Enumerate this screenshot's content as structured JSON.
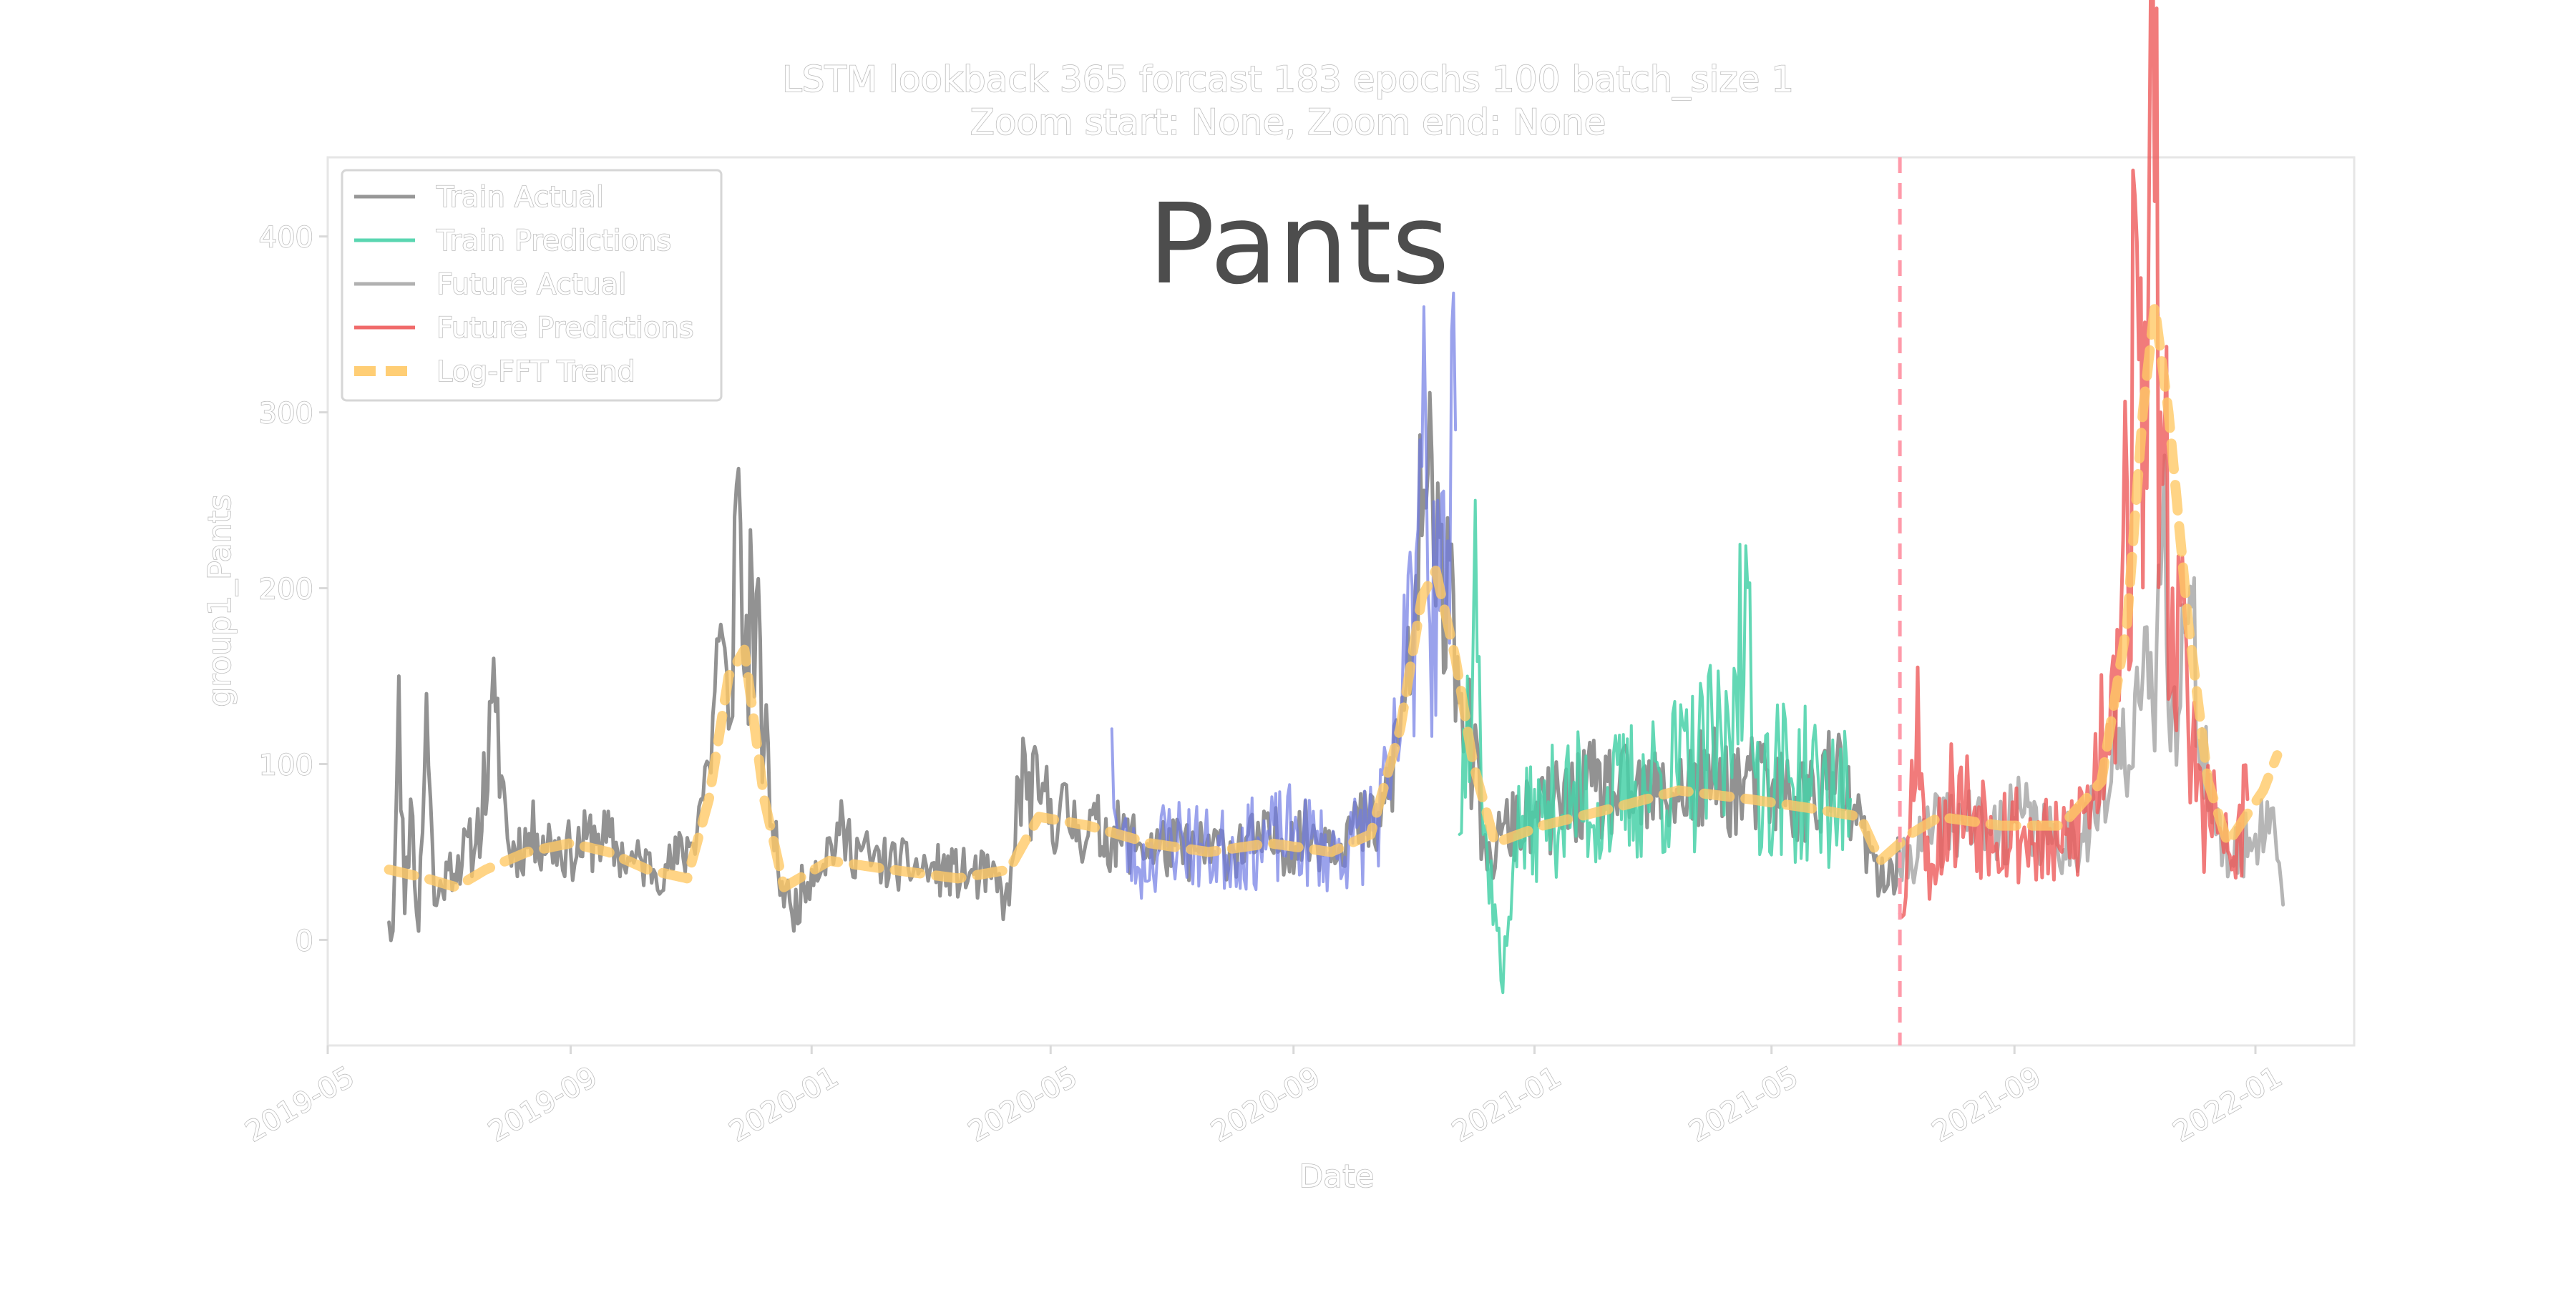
{
  "chart_data": {
    "type": "line",
    "title": "LSTM lookback 365 forcast 183 epochs 100 batch_size 1",
    "subtitle": "Zoom start: None, Zoom end: None",
    "watermark": "Pants",
    "xlabel": "Date",
    "ylabel": "group1_Pants",
    "x_range": [
      "2019-05-01",
      "2022-02-20"
    ],
    "ylim": [
      -60,
      445
    ],
    "x_ticks": [
      "2019-05",
      "2019-09",
      "2020-01",
      "2020-05",
      "2020-09",
      "2021-01",
      "2021-05",
      "2021-09",
      "2022-01"
    ],
    "y_ticks": [
      0,
      100,
      200,
      300,
      400
    ],
    "grid": false,
    "legend_position": "top-left",
    "split_line": {
      "x": "2021-07-05",
      "color": "#ff9aaa",
      "style": "dashed"
    },
    "legend": [
      {
        "label": "Train Actual",
        "color": "#8c8c8c",
        "style": "solid"
      },
      {
        "label": "Train Predictions",
        "color": "#48d1a8",
        "style": "solid"
      },
      {
        "label": "Future Actual",
        "color": "#a9a9a9",
        "style": "solid"
      },
      {
        "label": "Future Predictions",
        "color": "#ee5a5a",
        "style": "solid"
      },
      {
        "label": "Log-FFT Trend",
        "color": "#ffc966",
        "style": "dashed"
      }
    ],
    "series": [
      {
        "key": "train_actual",
        "color": "#8c8c8c",
        "opacity": 0.95,
        "width": 5,
        "noise": 1.0,
        "seed": 11,
        "anchors": [
          [
            "2019-06-01",
            10
          ],
          [
            "2019-06-03",
            5
          ],
          [
            "2019-06-06",
            150
          ],
          [
            "2019-06-09",
            15
          ],
          [
            "2019-06-12",
            80
          ],
          [
            "2019-06-16",
            5
          ],
          [
            "2019-06-20",
            140
          ],
          [
            "2019-06-24",
            20
          ],
          [
            "2019-07-01",
            40
          ],
          [
            "2019-07-15",
            55
          ],
          [
            "2019-07-25",
            130
          ],
          [
            "2019-08-01",
            50
          ],
          [
            "2019-08-15",
            60
          ],
          [
            "2019-09-01",
            50
          ],
          [
            "2019-09-15",
            60
          ],
          [
            "2019-10-01",
            45
          ],
          [
            "2019-10-20",
            40
          ],
          [
            "2019-11-01",
            55
          ],
          [
            "2019-11-10",
            100
          ],
          [
            "2019-11-15",
            170
          ],
          [
            "2019-11-20",
            120
          ],
          [
            "2019-11-25",
            268
          ],
          [
            "2019-11-28",
            150
          ],
          [
            "2019-12-02",
            200
          ],
          [
            "2019-12-08",
            110
          ],
          [
            "2019-12-15",
            40
          ],
          [
            "2019-12-22",
            15
          ],
          [
            "2020-01-01",
            40
          ],
          [
            "2020-01-15",
            60
          ],
          [
            "2020-02-01",
            45
          ],
          [
            "2020-03-01",
            40
          ],
          [
            "2020-04-01",
            35
          ],
          [
            "2020-04-10",
            20
          ],
          [
            "2020-04-15",
            90
          ],
          [
            "2020-04-25",
            80
          ],
          [
            "2020-05-15",
            65
          ],
          [
            "2020-06-15",
            55
          ],
          [
            "2020-07-15",
            50
          ],
          [
            "2020-08-15",
            55
          ],
          [
            "2020-09-15",
            60
          ],
          [
            "2020-10-15",
            65
          ],
          [
            "2020-10-25",
            120
          ],
          [
            "2020-11-01",
            180
          ],
          [
            "2020-11-05",
            230
          ],
          [
            "2020-11-08",
            265
          ],
          [
            "2020-11-12",
            190
          ],
          [
            "2020-11-18",
            240
          ],
          [
            "2020-11-25",
            140
          ],
          [
            "2020-12-01",
            100
          ],
          [
            "2020-12-08",
            40
          ],
          [
            "2020-12-15",
            60
          ],
          [
            "2021-01-01",
            70
          ],
          [
            "2021-02-01",
            85
          ],
          [
            "2021-03-01",
            80
          ],
          [
            "2021-04-01",
            90
          ],
          [
            "2021-05-01",
            85
          ],
          [
            "2021-05-20",
            80
          ],
          [
            "2021-06-01",
            95
          ],
          [
            "2021-06-20",
            50
          ],
          [
            "2021-06-25",
            30
          ],
          [
            "2021-07-05",
            45
          ]
        ]
      },
      {
        "key": "train_predictions_blue",
        "color": "#6f7be4",
        "opacity": 0.7,
        "width": 4,
        "noise": 1.4,
        "seed": 23,
        "anchors": [
          [
            "2020-06-01",
            120
          ],
          [
            "2020-06-04",
            60
          ],
          [
            "2020-06-15",
            40
          ],
          [
            "2020-07-01",
            60
          ],
          [
            "2020-07-20",
            50
          ],
          [
            "2020-08-15",
            55
          ],
          [
            "2020-09-01",
            60
          ],
          [
            "2020-09-20",
            50
          ],
          [
            "2020-10-01",
            55
          ],
          [
            "2020-10-20",
            80
          ],
          [
            "2020-10-28",
            150
          ],
          [
            "2020-11-02",
            220
          ],
          [
            "2020-11-06",
            360
          ],
          [
            "2020-11-09",
            180
          ],
          [
            "2020-11-13",
            250
          ],
          [
            "2020-11-17",
            180
          ],
          [
            "2020-11-22",
            290
          ]
        ]
      },
      {
        "key": "train_predictions_green",
        "color": "#48d1a8",
        "opacity": 0.85,
        "width": 4,
        "noise": 1.5,
        "seed": 37,
        "anchors": [
          [
            "2020-11-24",
            60
          ],
          [
            "2020-11-28",
            150
          ],
          [
            "2020-12-02",
            250
          ],
          [
            "2020-12-06",
            60
          ],
          [
            "2020-12-12",
            20
          ],
          [
            "2020-12-16",
            -30
          ],
          [
            "2020-12-22",
            60
          ],
          [
            "2021-01-05",
            70
          ],
          [
            "2021-01-20",
            80
          ],
          [
            "2021-02-05",
            75
          ],
          [
            "2021-03-01",
            90
          ],
          [
            "2021-03-20",
            95
          ],
          [
            "2021-04-10",
            110
          ],
          [
            "2021-04-15",
            225
          ],
          [
            "2021-04-22",
            100
          ],
          [
            "2021-05-10",
            90
          ],
          [
            "2021-05-25",
            85
          ],
          [
            "2021-06-10",
            80
          ]
        ]
      },
      {
        "key": "future_actual",
        "color": "#a9a9a9",
        "opacity": 0.85,
        "width": 5,
        "noise": 1.0,
        "seed": 41,
        "anchors": [
          [
            "2021-07-05",
            40
          ],
          [
            "2021-07-20",
            60
          ],
          [
            "2021-08-05",
            70
          ],
          [
            "2021-08-20",
            60
          ],
          [
            "2021-09-05",
            70
          ],
          [
            "2021-09-20",
            55
          ],
          [
            "2021-10-05",
            60
          ],
          [
            "2021-10-20",
            90
          ],
          [
            "2021-11-01",
            140
          ],
          [
            "2021-11-10",
            130
          ],
          [
            "2021-11-15",
            235
          ],
          [
            "2021-11-20",
            140
          ],
          [
            "2021-11-28",
            180
          ],
          [
            "2021-12-05",
            120
          ],
          [
            "2021-12-12",
            60
          ],
          [
            "2021-12-20",
            45
          ],
          [
            "2022-01-01",
            60
          ],
          [
            "2022-01-10",
            75
          ],
          [
            "2022-01-15",
            20
          ]
        ]
      },
      {
        "key": "future_predictions",
        "color": "#ee5a5a",
        "opacity": 0.8,
        "width": 5,
        "noise": 1.5,
        "seed": 53,
        "anchors": [
          [
            "2021-07-05",
            15
          ],
          [
            "2021-07-10",
            60
          ],
          [
            "2021-07-14",
            155
          ],
          [
            "2021-07-18",
            40
          ],
          [
            "2021-08-01",
            80
          ],
          [
            "2021-08-20",
            70
          ],
          [
            "2021-09-05",
            60
          ],
          [
            "2021-09-25",
            50
          ],
          [
            "2021-10-10",
            80
          ],
          [
            "2021-10-20",
            150
          ],
          [
            "2021-10-28",
            260
          ],
          [
            "2021-11-03",
            330
          ],
          [
            "2021-11-08",
            400
          ],
          [
            "2021-11-11",
            420
          ],
          [
            "2021-11-14",
            300
          ],
          [
            "2021-11-20",
            200
          ],
          [
            "2021-11-28",
            120
          ],
          [
            "2021-12-05",
            80
          ],
          [
            "2021-12-15",
            60
          ],
          [
            "2021-12-20",
            40
          ],
          [
            "2021-12-28",
            80
          ]
        ]
      },
      {
        "key": "log_fft_trend",
        "color": "#ffc966",
        "opacity": 0.8,
        "width": 14,
        "noise": 0,
        "seed": 0,
        "dashed": true,
        "anchors": [
          [
            "2019-06-01",
            40
          ],
          [
            "2019-06-20",
            35
          ],
          [
            "2019-07-05",
            30
          ],
          [
            "2019-07-20",
            40
          ],
          [
            "2019-08-10",
            50
          ],
          [
            "2019-09-01",
            55
          ],
          [
            "2019-09-20",
            50
          ],
          [
            "2019-10-10",
            40
          ],
          [
            "2019-10-30",
            35
          ],
          [
            "2019-11-10",
            80
          ],
          [
            "2019-11-20",
            150
          ],
          [
            "2019-11-28",
            165
          ],
          [
            "2019-12-08",
            80
          ],
          [
            "2019-12-18",
            30
          ],
          [
            "2020-01-10",
            45
          ],
          [
            "2020-02-10",
            40
          ],
          [
            "2020-03-15",
            35
          ],
          [
            "2020-04-10",
            40
          ],
          [
            "2020-04-25",
            70
          ],
          [
            "2020-05-20",
            65
          ],
          [
            "2020-06-20",
            55
          ],
          [
            "2020-07-20",
            50
          ],
          [
            "2020-08-20",
            55
          ],
          [
            "2020-09-20",
            50
          ],
          [
            "2020-10-10",
            60
          ],
          [
            "2020-10-25",
            120
          ],
          [
            "2020-11-05",
            195
          ],
          [
            "2020-11-12",
            210
          ],
          [
            "2020-11-22",
            160
          ],
          [
            "2020-12-01",
            100
          ],
          [
            "2020-12-12",
            55
          ],
          [
            "2021-01-05",
            65
          ],
          [
            "2021-02-10",
            75
          ],
          [
            "2021-03-15",
            85
          ],
          [
            "2021-04-20",
            80
          ],
          [
            "2021-05-20",
            75
          ],
          [
            "2021-06-15",
            70
          ],
          [
            "2021-06-25",
            45
          ],
          [
            "2021-07-10",
            60
          ],
          [
            "2021-07-25",
            70
          ],
          [
            "2021-08-25",
            65
          ],
          [
            "2021-09-25",
            65
          ],
          [
            "2021-10-15",
            90
          ],
          [
            "2021-10-28",
            180
          ],
          [
            "2021-11-05",
            300
          ],
          [
            "2021-11-11",
            360
          ],
          [
            "2021-11-18",
            300
          ],
          [
            "2021-11-28",
            180
          ],
          [
            "2021-12-08",
            90
          ],
          [
            "2021-12-18",
            55
          ],
          [
            "2022-01-05",
            85
          ],
          [
            "2022-01-12",
            105
          ]
        ]
      }
    ]
  }
}
